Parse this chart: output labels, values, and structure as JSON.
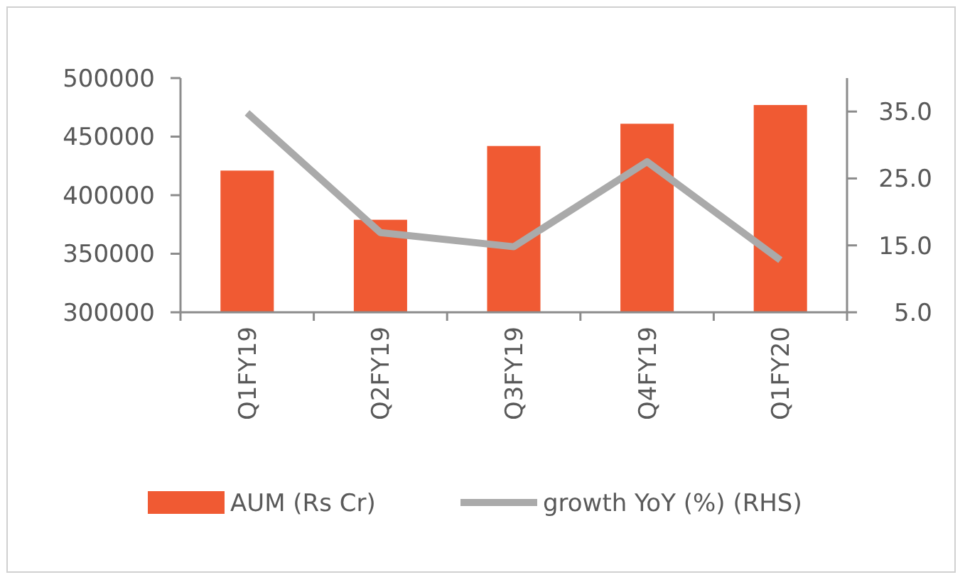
{
  "chart_data": {
    "type": "bar",
    "categories": [
      "Q1FY19",
      "Q2FY19",
      "Q3FY19",
      "Q4FY19",
      "Q1FY20"
    ],
    "series": [
      {
        "name": "AUM (Rs Cr)",
        "color": "#f05a33",
        "values": [
          421000,
          379000,
          442000,
          461000,
          477000
        ]
      },
      {
        "name": "growth YoY (%) (RHS)",
        "type": "line",
        "axis": "y2",
        "color": "#aaaaaa",
        "values": [
          34.8,
          16.9,
          14.8,
          27.5,
          12.8
        ]
      }
    ],
    "ylim": [
      300000,
      500000
    ],
    "yticks": [
      300000,
      350000,
      400000,
      450000,
      500000
    ],
    "y2lim": [
      5,
      40
    ],
    "y2ticks": [
      {
        "value": 5,
        "label": "5.0"
      },
      {
        "value": 15,
        "label": "15.0"
      },
      {
        "value": 25,
        "label": "25.0"
      },
      {
        "value": 35,
        "label": "35.0"
      }
    ],
    "grid": false,
    "legend": "bottom",
    "marker": "none"
  }
}
